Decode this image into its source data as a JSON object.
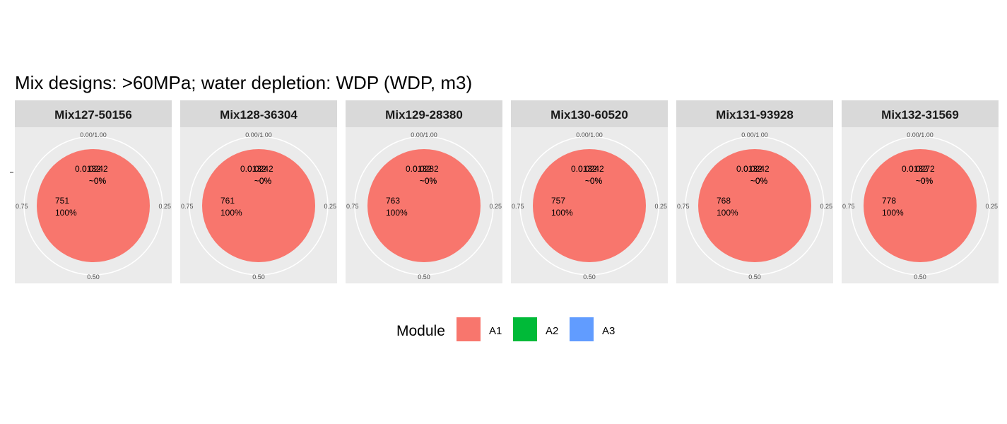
{
  "chart_data": {
    "type": "pie",
    "title": "Mix designs: >60MPa; water depletion: WDP (WDP, m3)",
    "theta_ticks": [
      "0.00/1.00",
      "0.25",
      "0.50",
      "0.75"
    ],
    "legend": {
      "title": "Module",
      "position": "bottom",
      "items": [
        {
          "name": "A1",
          "color": "#F8766D"
        },
        {
          "name": "A2",
          "color": "#00BA38"
        },
        {
          "name": "A3",
          "color": "#619CFF"
        }
      ]
    },
    "panels": [
      {
        "name": "Mix127-50156",
        "slices": [
          {
            "module": "A1",
            "value": "751",
            "pct": "100%"
          },
          {
            "module": "A2",
            "value": "0.0132",
            "pct": "~0%"
          },
          {
            "module": "A3",
            "value": "0.0242",
            "pct": "~0%"
          }
        ]
      },
      {
        "name": "Mix128-36304",
        "slices": [
          {
            "module": "A1",
            "value": "761",
            "pct": "100%"
          },
          {
            "module": "A2",
            "value": "0.0132",
            "pct": "~0%"
          },
          {
            "module": "A3",
            "value": "0.0242",
            "pct": "~0%"
          }
        ]
      },
      {
        "name": "Mix129-28380",
        "slices": [
          {
            "module": "A1",
            "value": "763",
            "pct": "100%"
          },
          {
            "module": "A2",
            "value": "0.0132",
            "pct": "~0%"
          },
          {
            "module": "A3",
            "value": "0.0282",
            "pct": "~0%"
          }
        ]
      },
      {
        "name": "Mix130-60520",
        "slices": [
          {
            "module": "A1",
            "value": "757",
            "pct": "100%"
          },
          {
            "module": "A2",
            "value": "0.0132",
            "pct": "~0%"
          },
          {
            "module": "A3",
            "value": "0.0242",
            "pct": "~0%"
          }
        ]
      },
      {
        "name": "Mix131-93928",
        "slices": [
          {
            "module": "A1",
            "value": "768",
            "pct": "100%"
          },
          {
            "module": "A2",
            "value": "0.0132",
            "pct": "~0%"
          },
          {
            "module": "A3",
            "value": "0.0242",
            "pct": "~0%"
          }
        ]
      },
      {
        "name": "Mix132-31569",
        "slices": [
          {
            "module": "A1",
            "value": "778",
            "pct": "100%"
          },
          {
            "module": "A2",
            "value": "0.0132",
            "pct": "~0%"
          },
          {
            "module": "A3",
            "value": "0.0272",
            "pct": "~0%"
          }
        ]
      }
    ]
  }
}
